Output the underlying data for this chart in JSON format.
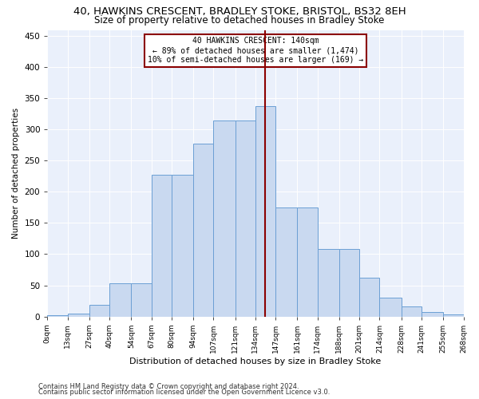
{
  "title1": "40, HAWKINS CRESCENT, BRADLEY STOKE, BRISTOL, BS32 8EH",
  "title2": "Size of property relative to detached houses in Bradley Stoke",
  "xlabel": "Distribution of detached houses by size in Bradley Stoke",
  "ylabel": "Number of detached properties",
  "annotation_line1": "40 HAWKINS CRESCENT: 140sqm",
  "annotation_line2": "← 89% of detached houses are smaller (1,474)",
  "annotation_line3": "10% of semi-detached houses are larger (169) →",
  "footer1": "Contains HM Land Registry data © Crown copyright and database right 2024.",
  "footer2": "Contains public sector information licensed under the Open Government Licence v3.0.",
  "bin_edges": [
    0,
    13,
    27,
    40,
    54,
    67,
    80,
    94,
    107,
    121,
    134,
    147,
    161,
    174,
    188,
    201,
    214,
    228,
    241,
    255,
    268
  ],
  "bin_labels": [
    "0sqm",
    "13sqm",
    "27sqm",
    "40sqm",
    "54sqm",
    "67sqm",
    "80sqm",
    "94sqm",
    "107sqm",
    "121sqm",
    "134sqm",
    "147sqm",
    "161sqm",
    "174sqm",
    "188sqm",
    "201sqm",
    "214sqm",
    "228sqm",
    "241sqm",
    "255sqm",
    "268sqm"
  ],
  "bar_heights": [
    2,
    5,
    19,
    53,
    53,
    228,
    228,
    278,
    315,
    315,
    338,
    175,
    175,
    108,
    108,
    62,
    30,
    16,
    7,
    3
  ],
  "bar_color": "#c9d9f0",
  "bar_edgecolor": "#6b9fd4",
  "vline_x": 140,
  "vline_color": "#8b0000",
  "ylim": [
    0,
    460
  ],
  "yticks": [
    0,
    50,
    100,
    150,
    200,
    250,
    300,
    350,
    400,
    450
  ],
  "bg_color": "#eaf0fb",
  "annotation_box_color": "#8b0000",
  "title1_fontsize": 9.5,
  "title2_fontsize": 8.5
}
